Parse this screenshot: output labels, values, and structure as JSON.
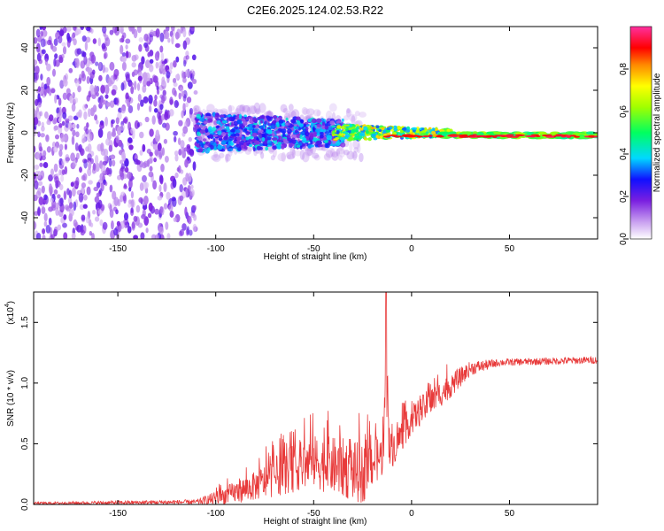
{
  "figure": {
    "title": "C2E6.2025.124.02.53.R22"
  },
  "colors": {
    "snr_line": "#e83a3a",
    "axis": "#000000",
    "background": "#ffffff"
  },
  "chart_data": [
    {
      "type": "heatmap",
      "xlabel": "Height of straight line (km)",
      "ylabel": "Frequency (Hz)",
      "xlim": [
        -193,
        95
      ],
      "ylim": [
        -50,
        50
      ],
      "x_ticks": [
        -150,
        -100,
        -50,
        0,
        50
      ],
      "x_tick_labels": [
        "-150",
        "-100",
        "-50",
        "0",
        "50"
      ],
      "y_ticks": [
        -40,
        -20,
        0,
        20,
        40
      ],
      "y_tick_labels": [
        "-40",
        "-20",
        "0",
        "20",
        "40"
      ],
      "colorbar": {
        "label": "Normalized spectral amplitude",
        "range": [
          0.0,
          1.0
        ],
        "ticks": [
          0.0,
          0.2,
          0.4,
          0.6,
          0.8
        ],
        "tick_labels": [
          "0.0",
          "0.2",
          "0.4",
          "0.6",
          "0.8"
        ]
      },
      "regions": [
        {
          "x_range": [
            -193,
            -110
          ],
          "freq_spread": 50,
          "amplitude": [
            0.05,
            0.2
          ],
          "pattern": "scattered noise"
        },
        {
          "x_range": [
            -110,
            -40
          ],
          "freq_spread": 8,
          "amplitude": [
            0.1,
            0.35
          ],
          "pattern": "dense cluster around 0 Hz"
        },
        {
          "x_range": [
            -40,
            20
          ],
          "freq_center": 0,
          "amplitude": [
            0.3,
            1.0
          ],
          "pattern": "narrowing tone"
        },
        {
          "x_range": [
            20,
            95
          ],
          "freq_center": -1.5,
          "amplitude": [
            0.4,
            1.0
          ],
          "pattern": "steady carrier tone"
        }
      ]
    },
    {
      "type": "line",
      "xlabel": "Height of straight line (km)",
      "ylabel": "SNR (10 * v/v)",
      "y_scale_label": "(x10",
      "y_scale_exponent": "4",
      "xlim": [
        -193,
        95
      ],
      "ylim": [
        0,
        1.75
      ],
      "x_ticks": [
        -150,
        -100,
        -50,
        0,
        50
      ],
      "x_tick_labels": [
        "-150",
        "-100",
        "-50",
        "0",
        "50"
      ],
      "y_ticks": [
        0.0,
        0.5,
        1.0,
        1.5
      ],
      "y_tick_labels": [
        "0.0",
        "0.5",
        "1.0",
        "1.5"
      ],
      "envelope": [
        {
          "x": -193,
          "mean": 0.01,
          "spread": 0.01
        },
        {
          "x": -110,
          "mean": 0.02,
          "spread": 0.02
        },
        {
          "x": -100,
          "mean": 0.05,
          "spread": 0.06
        },
        {
          "x": -80,
          "mean": 0.15,
          "spread": 0.12
        },
        {
          "x": -60,
          "mean": 0.3,
          "spread": 0.2
        },
        {
          "x": -50,
          "mean": 0.35,
          "spread": 0.22
        },
        {
          "x": -35,
          "mean": 0.3,
          "spread": 0.25
        },
        {
          "x": -25,
          "mean": 0.25,
          "spread": 0.25
        },
        {
          "x": -20,
          "mean": 0.35,
          "spread": 0.2
        },
        {
          "x": -10,
          "mean": 0.45,
          "spread": 0.15
        },
        {
          "x": 0,
          "mean": 0.7,
          "spread": 0.12
        },
        {
          "x": 10,
          "mean": 0.85,
          "spread": 0.12
        },
        {
          "x": 20,
          "mean": 0.98,
          "spread": 0.1
        },
        {
          "x": 30,
          "mean": 1.12,
          "spread": 0.06
        },
        {
          "x": 45,
          "mean": 1.17,
          "spread": 0.03
        },
        {
          "x": 95,
          "mean": 1.19,
          "spread": 0.03
        }
      ],
      "spike": {
        "x": -13,
        "y": 1.75
      }
    }
  ]
}
